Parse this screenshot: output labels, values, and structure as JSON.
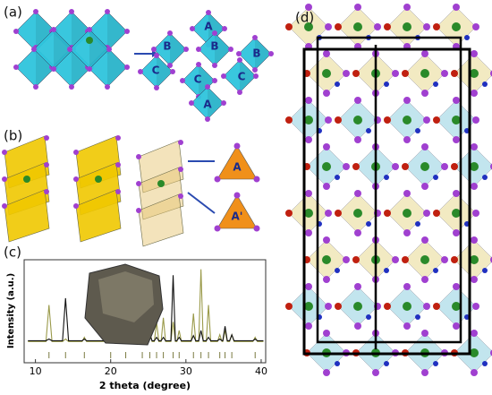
{
  "panels": {
    "a": {
      "label": "(a)",
      "site_labels": [
        "A",
        "B",
        "B",
        "B",
        "C",
        "C",
        "C",
        "A"
      ]
    },
    "b": {
      "label": "(b)",
      "site_labels": [
        "A",
        "A'"
      ]
    },
    "d": {
      "label": "(d)"
    }
  },
  "chart_data": {
    "type": "line",
    "panel_label": "(c)",
    "x_label": "2 theta (degree)",
    "y_label": "Intensity (a.u.)",
    "xlim": [
      8.5,
      40.6
    ],
    "xticks": [
      10,
      20,
      30,
      40
    ],
    "ylim": [
      0,
      1
    ],
    "x": [
      9,
      11.4,
      11.8,
      12.2,
      13.6,
      14.0,
      14.4,
      16.2,
      16.5,
      16.8,
      19.7,
      20.0,
      20.3,
      21.7,
      22.0,
      22.3,
      23.9,
      24.2,
      24.5,
      24.9,
      25.2,
      25.5,
      25.8,
      26.1,
      26.4,
      26.7,
      27.0,
      27.3,
      28.0,
      28.3,
      28.6,
      28.8,
      29.1,
      29.4,
      30.7,
      31.0,
      31.3,
      31.7,
      32.0,
      32.3,
      32.7,
      33.0,
      33.3,
      34.2,
      34.5,
      34.8,
      34.9,
      35.2,
      35.5,
      35.8,
      36.1,
      36.4,
      38.9,
      39.2,
      39.5,
      40.3
    ],
    "series": [
      {
        "color": "#9a9a4a",
        "values": [
          0.07,
          0.07,
          0.5,
          0.07,
          0.07,
          0.1,
          0.07,
          0.07,
          0.12,
          0.07,
          0.07,
          0.1,
          0.07,
          0.07,
          0.1,
          0.07,
          0.07,
          0.12,
          0.07,
          0.07,
          0.2,
          0.07,
          0.07,
          0.3,
          0.07,
          0.07,
          0.35,
          0.07,
          0.07,
          0.3,
          0.07,
          0.07,
          0.2,
          0.07,
          0.07,
          0.4,
          0.07,
          0.07,
          0.92,
          0.07,
          0.07,
          0.5,
          0.07,
          0.07,
          0.15,
          0.07,
          0.07,
          0.2,
          0.07,
          0.07,
          0.15,
          0.07,
          0.07,
          0.12,
          0.07,
          0.07
        ]
      },
      {
        "color": "#111111",
        "values": [
          0.08,
          0.08,
          0.1,
          0.08,
          0.08,
          0.58,
          0.08,
          0.08,
          0.1,
          0.08,
          0.08,
          0.15,
          0.08,
          0.08,
          0.1,
          0.08,
          0.08,
          0.12,
          0.08,
          0.08,
          0.15,
          0.08,
          0.08,
          0.12,
          0.08,
          0.08,
          0.12,
          0.08,
          0.08,
          0.85,
          0.08,
          0.08,
          0.12,
          0.08,
          0.08,
          0.14,
          0.08,
          0.08,
          0.2,
          0.08,
          0.08,
          0.12,
          0.08,
          0.08,
          0.1,
          0.08,
          0.08,
          0.25,
          0.08,
          0.08,
          0.15,
          0.08,
          0.08,
          0.1,
          0.08,
          0.08
        ]
      }
    ],
    "reflections": [
      11.8,
      14.0,
      16.5,
      20.0,
      22.0,
      24.2,
      25.2,
      26.1,
      27.0,
      28.3,
      29.1,
      31.0,
      32.0,
      33.0,
      34.5,
      35.2,
      36.1,
      39.2
    ]
  }
}
